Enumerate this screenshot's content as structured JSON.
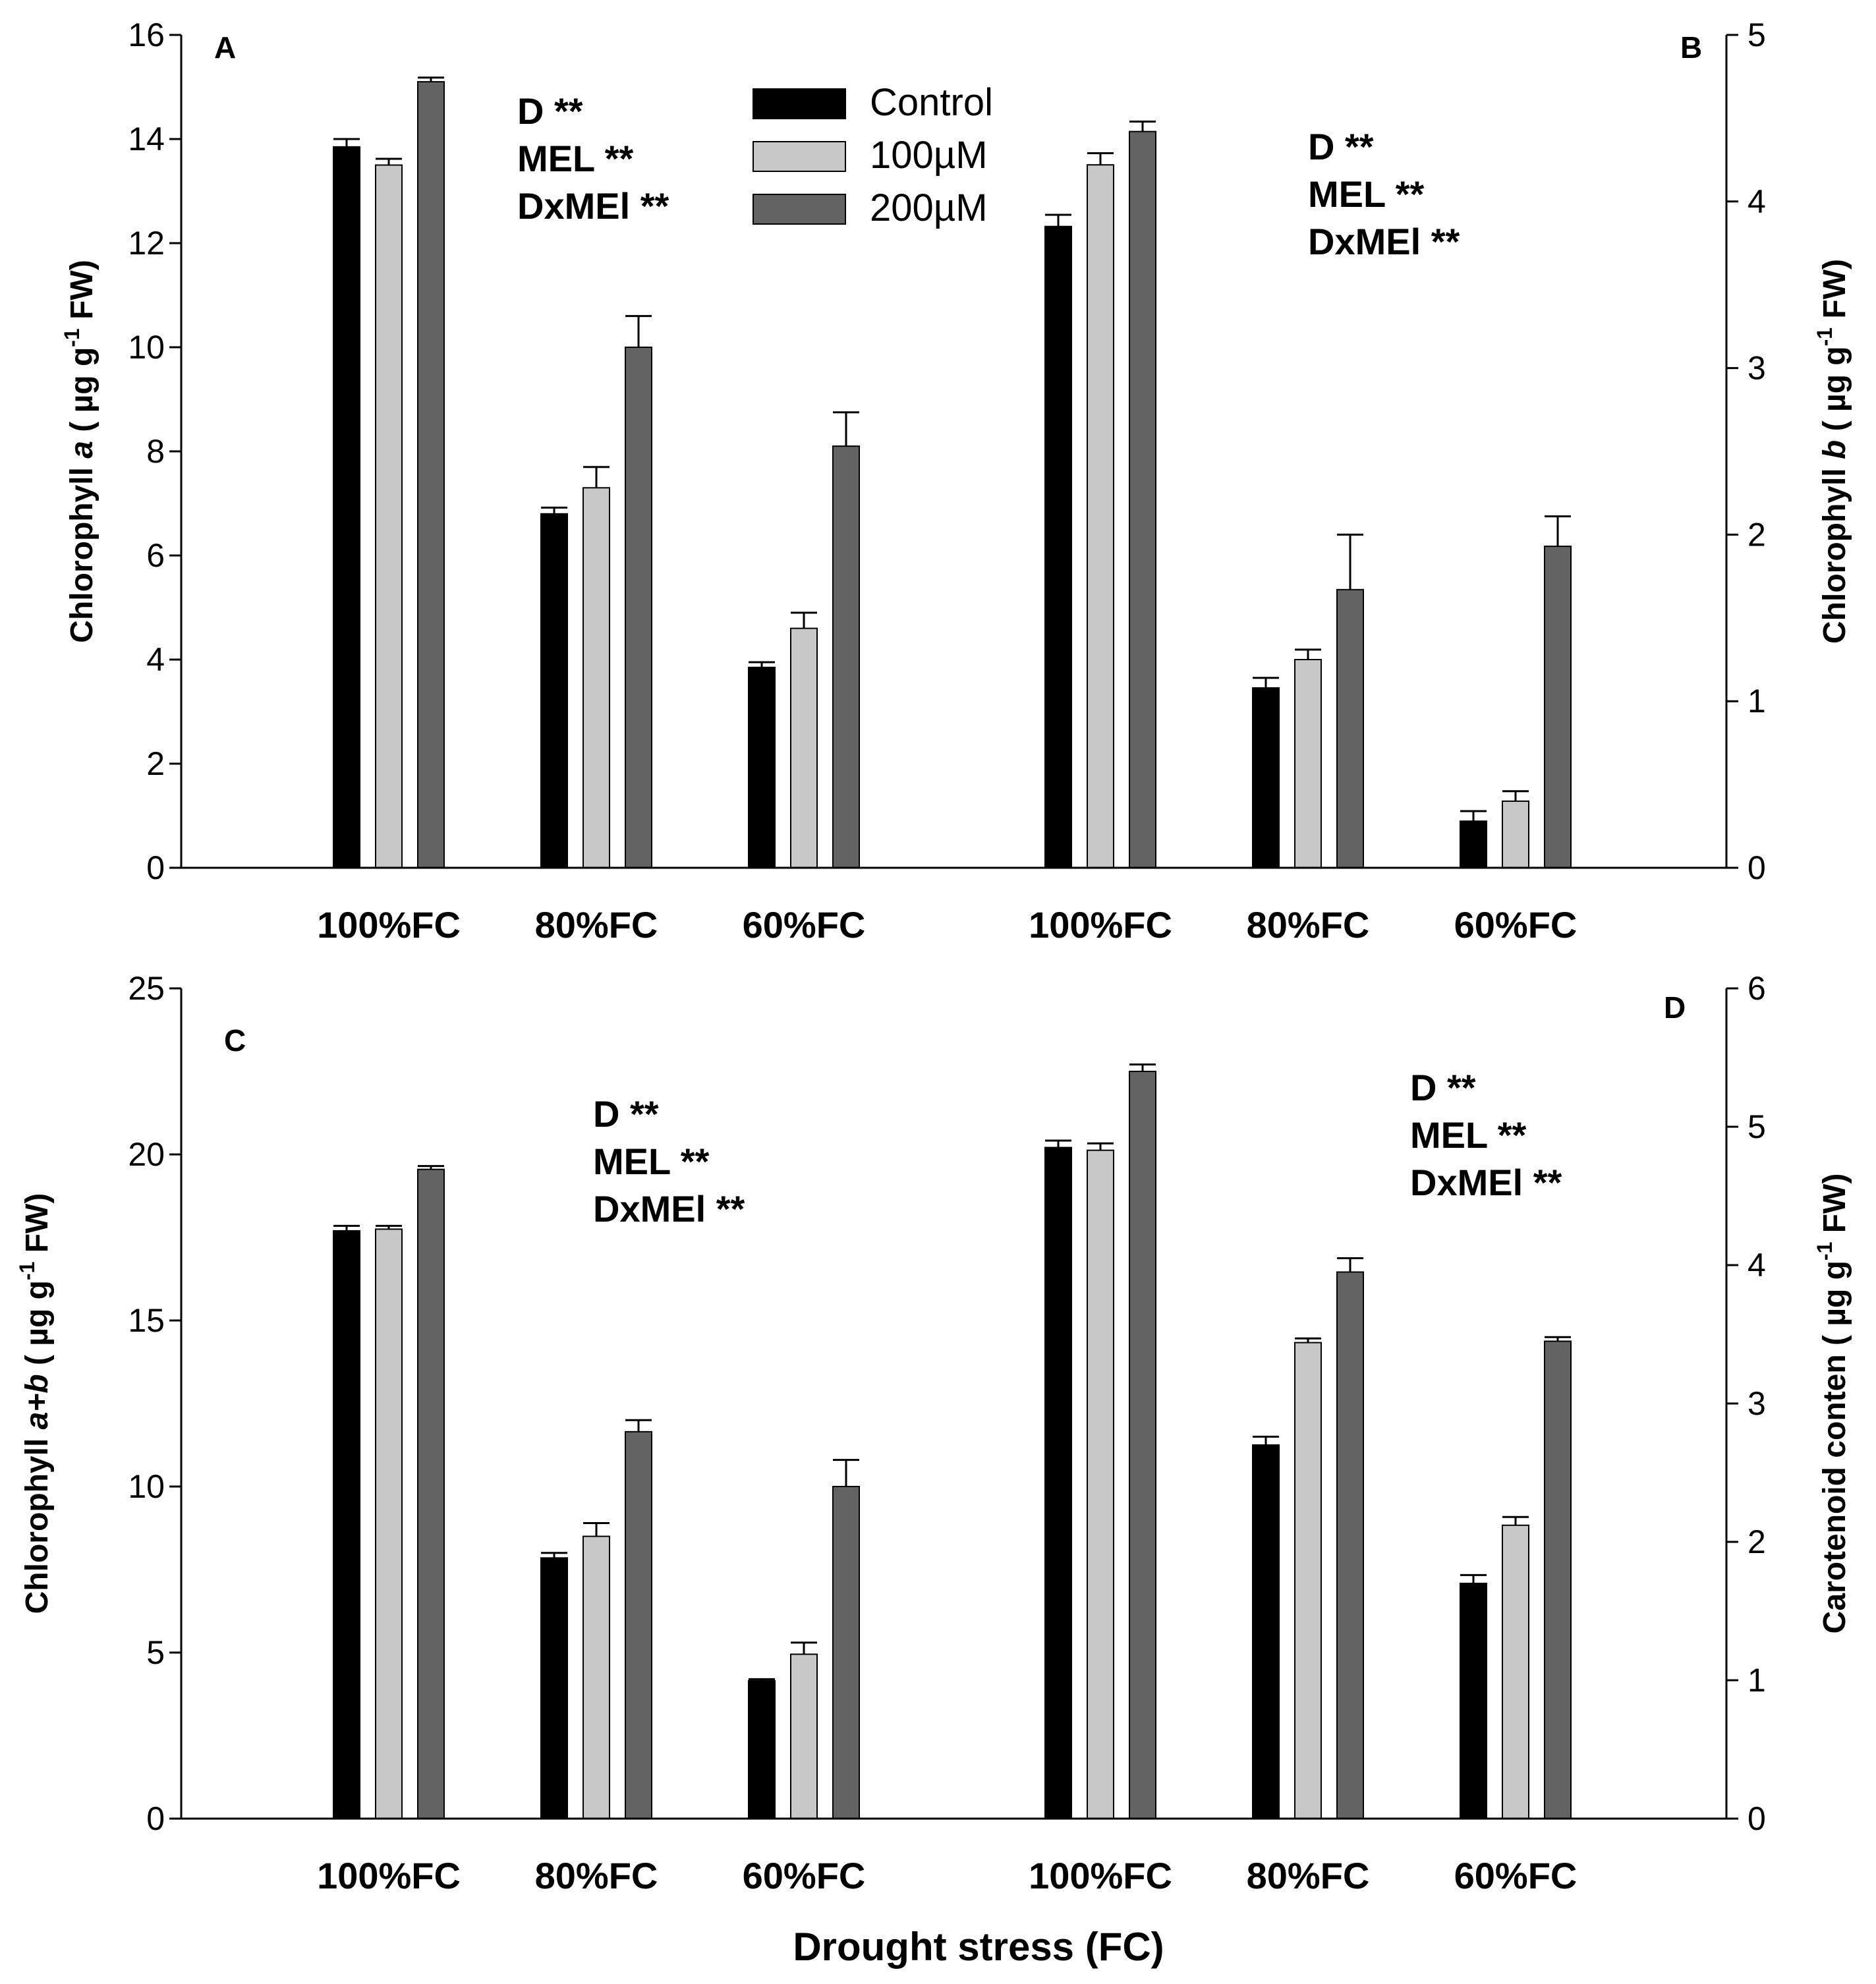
{
  "x_axis_label": "Drought stress (FC)",
  "legend": [
    {
      "label": "Control",
      "color": "#000000"
    },
    {
      "label": "100µM",
      "color": "#c8c8c8"
    },
    {
      "label": "200µM",
      "color": "#636363"
    }
  ],
  "chart_data": [
    {
      "type": "bar",
      "panel": "A",
      "title": "",
      "ylabel": "Chlorophyll a ( µg g-1 FW)",
      "ylim": [
        0,
        16
      ],
      "yticks": [
        0,
        2,
        4,
        6,
        8,
        10,
        12,
        14,
        16
      ],
      "categories": [
        "100%FC",
        "80%FC",
        "60%FC"
      ],
      "series": [
        {
          "name": "Control",
          "values": [
            13.85,
            6.8,
            3.85
          ],
          "errors": [
            0.15,
            0.12,
            0.1
          ]
        },
        {
          "name": "100µM",
          "values": [
            13.5,
            7.3,
            4.6
          ],
          "errors": [
            0.12,
            0.4,
            0.3
          ]
        },
        {
          "name": "200µM",
          "values": [
            15.1,
            10.0,
            8.1
          ],
          "errors": [
            0.08,
            0.6,
            0.65
          ]
        }
      ],
      "annotations": [
        "D **",
        "MEL **",
        "DxMEl **"
      ],
      "legend": "top-center"
    },
    {
      "type": "bar",
      "panel": "B",
      "title": "",
      "ylabel": "Chlorophyll b ( µg g-1 FW)",
      "ylim": [
        0,
        5
      ],
      "yticks": [
        0,
        1,
        2,
        3,
        4,
        5
      ],
      "categories": [
        "100%FC",
        "80%FC",
        "60%FC"
      ],
      "series": [
        {
          "name": "Control",
          "values": [
            3.85,
            1.08,
            0.28
          ],
          "errors": [
            0.07,
            0.06,
            0.06
          ]
        },
        {
          "name": "100µM",
          "values": [
            4.22,
            1.25,
            0.4
          ],
          "errors": [
            0.07,
            0.06,
            0.06
          ]
        },
        {
          "name": "200µM",
          "values": [
            4.42,
            1.67,
            1.93
          ],
          "errors": [
            0.06,
            0.33,
            0.18
          ]
        }
      ],
      "annotations": [
        "D **",
        "MEL **",
        "DxMEl **"
      ]
    },
    {
      "type": "bar",
      "panel": "C",
      "title": "",
      "ylabel": "Chlorophyll a+b ( µg g-1 FW)",
      "ylim": [
        0,
        25
      ],
      "yticks": [
        0,
        5,
        10,
        15,
        20,
        25
      ],
      "categories": [
        "100%FC",
        "80%FC",
        "60%FC"
      ],
      "series": [
        {
          "name": "Control",
          "values": [
            17.7,
            7.85,
            4.15
          ],
          "errors": [
            0.15,
            0.15,
            0.05
          ]
        },
        {
          "name": "100µM",
          "values": [
            17.75,
            8.5,
            4.95
          ],
          "errors": [
            0.1,
            0.4,
            0.35
          ]
        },
        {
          "name": "200µM",
          "values": [
            19.55,
            11.65,
            10.0
          ],
          "errors": [
            0.1,
            0.35,
            0.8
          ]
        }
      ],
      "annotations": [
        "D **",
        "MEL **",
        "DxMEl **"
      ]
    },
    {
      "type": "bar",
      "panel": "D",
      "title": "",
      "ylabel": "Carotenoid conten ( µg g-1 FW)",
      "ylim": [
        0,
        6
      ],
      "yticks": [
        0,
        1,
        2,
        3,
        4,
        5,
        6
      ],
      "categories": [
        "100%FC",
        "80%FC",
        "60%FC"
      ],
      "series": [
        {
          "name": "Control",
          "values": [
            4.85,
            2.7,
            1.7
          ],
          "errors": [
            0.05,
            0.06,
            0.06
          ]
        },
        {
          "name": "100µM",
          "values": [
            4.83,
            3.44,
            2.12
          ],
          "errors": [
            0.05,
            0.03,
            0.06
          ]
        },
        {
          "name": "200µM",
          "values": [
            5.4,
            3.95,
            3.45
          ],
          "errors": [
            0.05,
            0.1,
            0.03
          ]
        }
      ],
      "annotations": [
        "D **",
        "MEL **",
        "DxMEl **"
      ]
    }
  ]
}
